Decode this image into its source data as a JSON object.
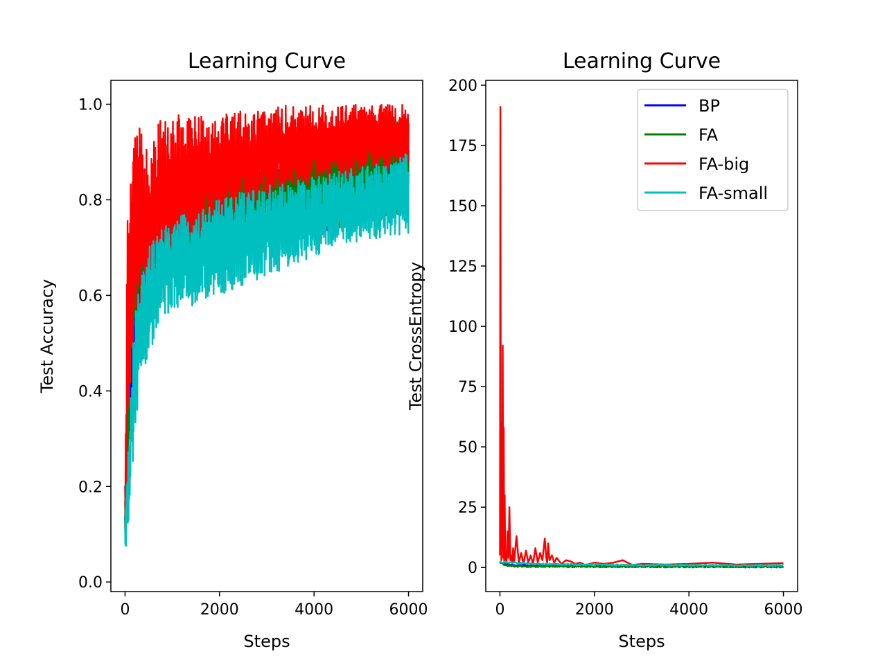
{
  "colors": {
    "background": "#ffffff",
    "axes": "#000000",
    "BP": "#0000ff",
    "FA": "#008000",
    "FA-big": "#ff0000",
    "FA-small": "#00bfbf"
  },
  "chart_data": [
    {
      "type": "line",
      "title": "Learning Curve",
      "xlabel": "Steps",
      "ylabel": "Test Accuracy",
      "xlim": [
        -300,
        6300
      ],
      "ylim": [
        -0.02,
        1.05
      ],
      "xticks": [
        0,
        2000,
        4000,
        6000
      ],
      "xtick_labels": [
        "0",
        "2000",
        "4000",
        "6000"
      ],
      "yticks": [
        0.0,
        0.2,
        0.4,
        0.6,
        0.8,
        1.0
      ],
      "ytick_labels": [
        "0.0",
        "0.2",
        "0.4",
        "0.6",
        "0.8",
        "1.0"
      ],
      "grid": false,
      "legend": false,
      "series": [
        {
          "name": "BP",
          "x": [
            0,
            50,
            100,
            200,
            300,
            500,
            750,
            1000,
            1500,
            2000,
            2500,
            3000,
            3500,
            4000,
            4500,
            5000,
            5500,
            6000
          ],
          "high": [
            0.15,
            0.45,
            0.6,
            0.7,
            0.74,
            0.78,
            0.8,
            0.82,
            0.84,
            0.86,
            0.87,
            0.88,
            0.89,
            0.9,
            0.9,
            0.91,
            0.92,
            0.92
          ],
          "low": [
            0.06,
            0.15,
            0.3,
            0.45,
            0.52,
            0.58,
            0.62,
            0.64,
            0.66,
            0.68,
            0.7,
            0.71,
            0.72,
            0.73,
            0.74,
            0.75,
            0.76,
            0.77
          ]
        },
        {
          "name": "FA",
          "x": [
            0,
            50,
            100,
            200,
            300,
            500,
            750,
            1000,
            1500,
            2000,
            2500,
            3000,
            3500,
            4000,
            4500,
            5000,
            5500,
            6000
          ],
          "high": [
            0.18,
            0.5,
            0.65,
            0.74,
            0.78,
            0.8,
            0.82,
            0.84,
            0.86,
            0.88,
            0.9,
            0.92,
            0.93,
            0.94,
            0.95,
            0.96,
            0.97,
            0.98
          ],
          "low": [
            0.08,
            0.2,
            0.35,
            0.5,
            0.56,
            0.6,
            0.63,
            0.65,
            0.67,
            0.69,
            0.7,
            0.71,
            0.72,
            0.73,
            0.74,
            0.75,
            0.76,
            0.77
          ]
        },
        {
          "name": "FA-big",
          "x": [
            0,
            50,
            100,
            200,
            300,
            500,
            750,
            1000,
            1500,
            2000,
            2500,
            3000,
            3500,
            4000,
            4500,
            5000,
            5500,
            6000
          ],
          "high": [
            0.22,
            0.76,
            0.87,
            0.93,
            0.95,
            0.95,
            0.97,
            0.98,
            0.98,
            0.99,
            0.99,
            0.99,
            1.0,
            1.0,
            1.0,
            1.0,
            1.0,
            1.0
          ],
          "low": [
            0.03,
            0.2,
            0.4,
            0.5,
            0.55,
            0.55,
            0.6,
            0.65,
            0.7,
            0.74,
            0.77,
            0.8,
            0.82,
            0.83,
            0.84,
            0.85,
            0.86,
            0.87
          ]
        },
        {
          "name": "FA-small",
          "x": [
            0,
            50,
            100,
            200,
            300,
            500,
            750,
            1000,
            1500,
            2000,
            2500,
            3000,
            3500,
            4000,
            4500,
            5000,
            5500,
            6000
          ],
          "high": [
            0.12,
            0.25,
            0.38,
            0.55,
            0.62,
            0.7,
            0.74,
            0.76,
            0.78,
            0.8,
            0.82,
            0.83,
            0.84,
            0.85,
            0.86,
            0.87,
            0.88,
            0.9
          ],
          "low": [
            0.05,
            0.1,
            0.15,
            0.3,
            0.4,
            0.47,
            0.55,
            0.57,
            0.58,
            0.6,
            0.62,
            0.64,
            0.66,
            0.68,
            0.7,
            0.71,
            0.72,
            0.73
          ]
        }
      ]
    },
    {
      "type": "line",
      "title": "Learning Curve",
      "xlabel": "Steps",
      "ylabel": "Test CrossEntropy",
      "xlim": [
        -300,
        6300
      ],
      "ylim": [
        -10,
        202
      ],
      "xticks": [
        0,
        2000,
        4000,
        6000
      ],
      "xtick_labels": [
        "0",
        "2000",
        "4000",
        "6000"
      ],
      "yticks": [
        0,
        25,
        50,
        75,
        100,
        125,
        150,
        175,
        200
      ],
      "ytick_labels": [
        "0",
        "25",
        "50",
        "75",
        "100",
        "125",
        "150",
        "175",
        "200"
      ],
      "grid": false,
      "legend": "top-right",
      "series": [
        {
          "name": "BP",
          "x": [
            0,
            50,
            100,
            200,
            300,
            500,
            1000,
            2000,
            3000,
            4000,
            5000,
            6000
          ],
          "values": [
            2.3,
            1.8,
            1.4,
            1.1,
            0.9,
            0.8,
            0.7,
            0.55,
            0.5,
            0.45,
            0.42,
            0.4
          ]
        },
        {
          "name": "FA",
          "x": [
            0,
            50,
            100,
            200,
            300,
            500,
            1000,
            2000,
            3000,
            4000,
            5000,
            6000
          ],
          "values": [
            2.3,
            1.5,
            1.0,
            0.7,
            0.5,
            0.45,
            0.4,
            0.35,
            0.3,
            0.3,
            0.28,
            0.28
          ]
        },
        {
          "name": "FA-big",
          "x": [
            0,
            10,
            20,
            30,
            40,
            50,
            60,
            70,
            80,
            90,
            100,
            110,
            120,
            140,
            160,
            180,
            200,
            220,
            240,
            260,
            280,
            300,
            350,
            400,
            450,
            500,
            550,
            600,
            650,
            700,
            750,
            800,
            850,
            900,
            950,
            980,
            1000,
            1020,
            1050,
            1100,
            1150,
            1200,
            1300,
            1400,
            1500,
            1600,
            1700,
            1800,
            2000,
            2200,
            2400,
            2600,
            2800,
            3000,
            3500,
            4000,
            4500,
            5000,
            5500,
            6000
          ],
          "values": [
            5,
            191,
            20,
            3,
            60,
            8,
            92,
            4,
            58,
            2,
            30,
            6,
            3,
            2,
            15,
            4,
            25,
            3,
            5,
            2,
            8,
            2,
            13,
            2,
            6,
            1.5,
            7,
            2,
            5,
            1.5,
            8,
            2,
            6,
            3,
            12,
            4,
            2,
            10,
            3,
            5,
            2,
            4,
            1.5,
            3,
            2.5,
            1.5,
            2,
            1,
            2,
            1.5,
            2,
            3,
            1,
            1.5,
            1.2,
            1.5,
            2,
            1.2,
            1.5,
            1.8
          ]
        },
        {
          "name": "FA-small",
          "x": [
            0,
            100,
            200,
            300,
            400,
            500,
            750,
            1000,
            1500,
            2000,
            2500,
            3000,
            3500,
            4000,
            4500,
            5000,
            5500,
            6000
          ],
          "values": [
            2.3,
            2.2,
            2.0,
            1.9,
            1.8,
            1.7,
            1.5,
            1.4,
            1.2,
            1.1,
            1.0,
            1.0,
            0.95,
            0.9,
            0.9,
            0.85,
            0.85,
            0.85
          ]
        }
      ]
    }
  ]
}
